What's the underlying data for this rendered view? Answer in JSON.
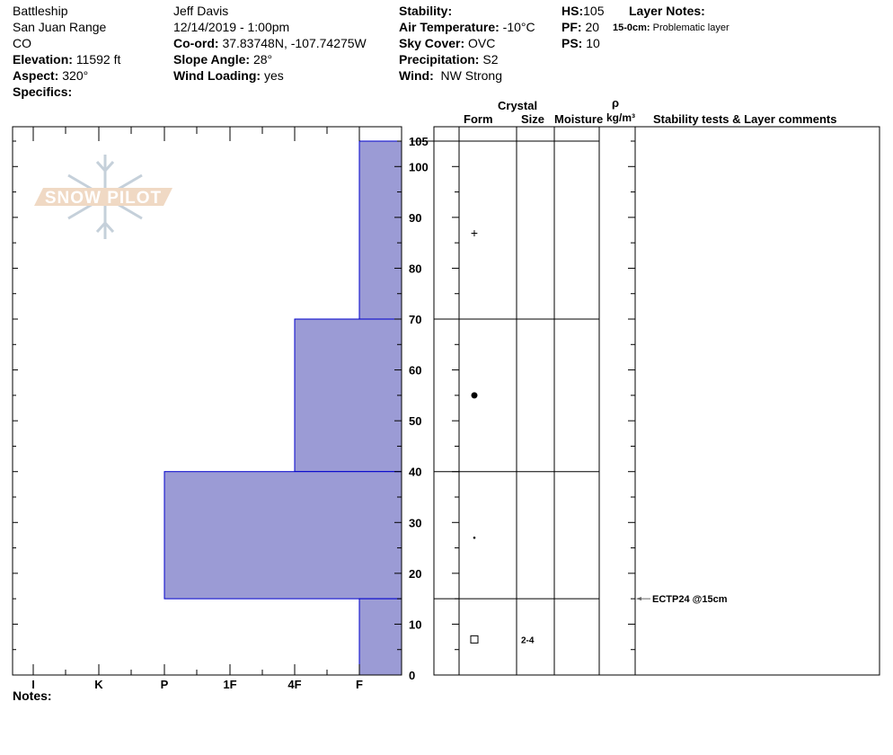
{
  "header": {
    "location": "Battleship",
    "range": "San Juan Range",
    "state": "CO",
    "elevation_label": "Elevation:",
    "elevation": "11592 ft",
    "aspect_label": "Aspect:",
    "aspect": "320°",
    "specifics_label": "Specifics:",
    "observer": "Jeff Davis",
    "datetime": "12/14/2019 - 1:00pm",
    "coord_label": "Co-ord:",
    "coord": "37.83748N, -107.74275W",
    "slope_label": "Slope Angle:",
    "slope": "28°",
    "wind_loading_label": "Wind Loading:",
    "wind_loading": "yes",
    "stability_label": "Stability:",
    "air_temp_label": "Air Temperature:",
    "air_temp": "-10°C",
    "sky_label": "Sky Cover:",
    "sky": "OVC",
    "precip_label": "Precipitation:",
    "precip": "S2",
    "wind_label": "Wind:",
    "wind": "NW Strong",
    "hs_label": "HS:",
    "hs": "105",
    "pf_label": "PF:",
    "pf": "20",
    "ps_label": "PS:",
    "ps": "10",
    "layer_notes_label": "Layer Notes:",
    "layer_note_range": "15-0cm:",
    "layer_note_text": "Problematic layer"
  },
  "table_headers": {
    "crystal": "Crystal",
    "form": "Form",
    "size": "Size",
    "moisture": "Moisture",
    "rho": "ρ",
    "density_unit": "kg/m³",
    "stability": "Stability tests & Layer comments"
  },
  "notes_label": "Notes:",
  "logo_text": "SNOW PILOT",
  "colors": {
    "layer_fill": "#9b9bd5",
    "layer_stroke": "#0000cc",
    "logo": "#f0d9c4",
    "flake": "#c5d0da"
  },
  "chart_data": {
    "type": "bar",
    "orientation": "horizontal-layers",
    "ylabel": "",
    "ylim": [
      0,
      105
    ],
    "y_ticks": [
      "0",
      "10",
      "20",
      "30",
      "40",
      "50",
      "60",
      "70",
      "80",
      "90",
      "100",
      "105"
    ],
    "hardness_ticks": [
      "I",
      "K",
      "P",
      "1F",
      "4F",
      "F"
    ],
    "layers": [
      {
        "top": 105,
        "bottom": 70,
        "hardness": "F"
      },
      {
        "top": 70,
        "bottom": 40,
        "hardness": "4F"
      },
      {
        "top": 40,
        "bottom": 15,
        "hardness": "P"
      },
      {
        "top": 15,
        "bottom": 0,
        "hardness": "F"
      }
    ],
    "grain_forms": [
      {
        "depth": 87,
        "symbol": "+",
        "size": ""
      },
      {
        "depth": 55,
        "symbol": "●",
        "size": ""
      },
      {
        "depth": 27,
        "symbol": "·",
        "size": ""
      },
      {
        "depth": 7,
        "symbol": "□",
        "size": "2-4"
      }
    ],
    "stability_tests": [
      {
        "depth": 15,
        "text": "ECTP24 @15cm"
      }
    ]
  }
}
